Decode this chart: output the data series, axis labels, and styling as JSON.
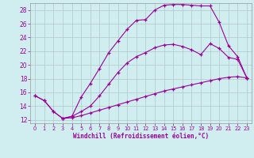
{
  "xlabel": "Windchill (Refroidissement éolien,°C)",
  "background_color": "#d0eef0",
  "line_color": "#990099",
  "xlim": [
    -0.5,
    23.5
  ],
  "ylim": [
    11.5,
    29.0
  ],
  "yticks": [
    12,
    14,
    16,
    18,
    20,
    22,
    24,
    26,
    28
  ],
  "xticks": [
    0,
    1,
    2,
    3,
    4,
    5,
    6,
    7,
    8,
    9,
    10,
    11,
    12,
    13,
    14,
    15,
    16,
    17,
    18,
    19,
    20,
    21,
    22,
    23
  ],
  "curve1_x": [
    0,
    1,
    2,
    3,
    4,
    5,
    6,
    7,
    8,
    9,
    10,
    11,
    12,
    13,
    14,
    15,
    16,
    17,
    18,
    19,
    20,
    21,
    22,
    23
  ],
  "curve1_y": [
    15.5,
    14.8,
    13.2,
    12.2,
    12.5,
    15.3,
    17.3,
    19.5,
    21.8,
    23.5,
    25.2,
    26.5,
    26.6,
    28.0,
    28.7,
    28.8,
    28.8,
    28.7,
    28.6,
    28.6,
    26.2,
    22.8,
    21.2,
    18.1
  ],
  "curve2_x": [
    0,
    1,
    2,
    3,
    4,
    5,
    6,
    7,
    8,
    9,
    10,
    11,
    12,
    13,
    14,
    15,
    16,
    17,
    18,
    19,
    20,
    21,
    22,
    23
  ],
  "curve2_y": [
    15.5,
    14.8,
    13.2,
    12.2,
    12.3,
    12.6,
    13.0,
    13.4,
    13.8,
    14.2,
    14.6,
    15.0,
    15.4,
    15.8,
    16.2,
    16.5,
    16.8,
    17.1,
    17.4,
    17.7,
    18.0,
    18.2,
    18.3,
    18.1
  ],
  "curve3_x": [
    3,
    4,
    5,
    6,
    7,
    8,
    9,
    10,
    11,
    12,
    13,
    14,
    15,
    16,
    17,
    18,
    19,
    20,
    21,
    22,
    23
  ],
  "curve3_y": [
    12.2,
    12.5,
    13.2,
    14.0,
    15.5,
    17.2,
    18.9,
    20.3,
    21.2,
    21.8,
    22.5,
    22.9,
    23.0,
    22.7,
    22.2,
    21.5,
    23.1,
    22.4,
    21.1,
    20.8,
    18.1
  ]
}
